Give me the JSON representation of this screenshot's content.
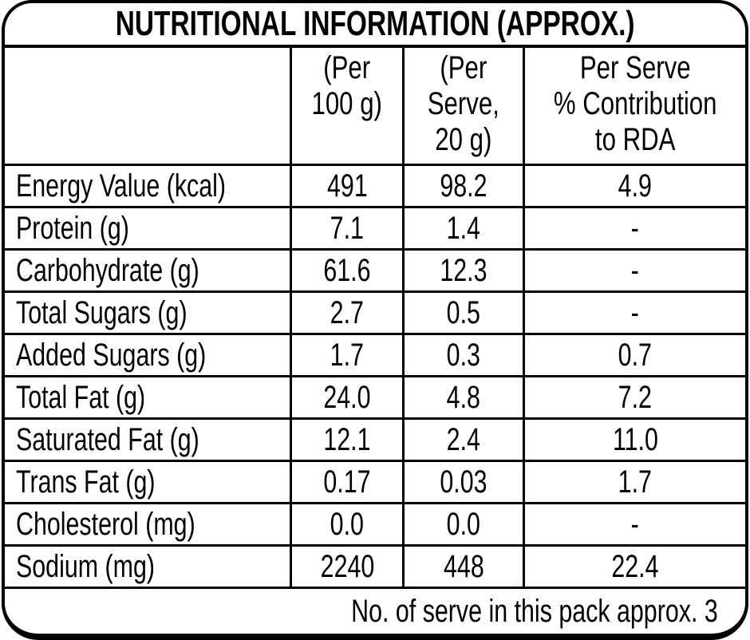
{
  "title": "NUTRITIONAL INFORMATION (APPROX.)",
  "table": {
    "columns": [
      "",
      "(Per\n100 g)",
      "(Per\nServe,\n20 g)",
      "Per Serve\n% Contribution\nto RDA"
    ],
    "rows": [
      [
        "Energy Value (kcal)",
        "491",
        "98.2",
        "4.9"
      ],
      [
        "Protein (g)",
        "7.1",
        "1.4",
        "-"
      ],
      [
        "Carbohydrate (g)",
        "61.6",
        "12.3",
        "-"
      ],
      [
        "Total Sugars (g)",
        "2.7",
        "0.5",
        "-"
      ],
      [
        "Added Sugars (g)",
        "1.7",
        "0.3",
        "0.7"
      ],
      [
        "Total Fat (g)",
        "24.0",
        "4.8",
        "7.2"
      ],
      [
        "Saturated Fat (g)",
        "12.1",
        "2.4",
        "11.0"
      ],
      [
        "Trans Fat (g)",
        "0.17",
        "0.03",
        "1.7"
      ],
      [
        "Cholesterol (mg)",
        "0.0",
        "0.0",
        "-"
      ],
      [
        "Sodium (mg)",
        "2240",
        "448",
        "22.4"
      ]
    ]
  },
  "footer_note": "No. of serve in this pack approx. 3",
  "colors": {
    "text": "#000000",
    "background": "#ffffff",
    "border": "#000000"
  }
}
